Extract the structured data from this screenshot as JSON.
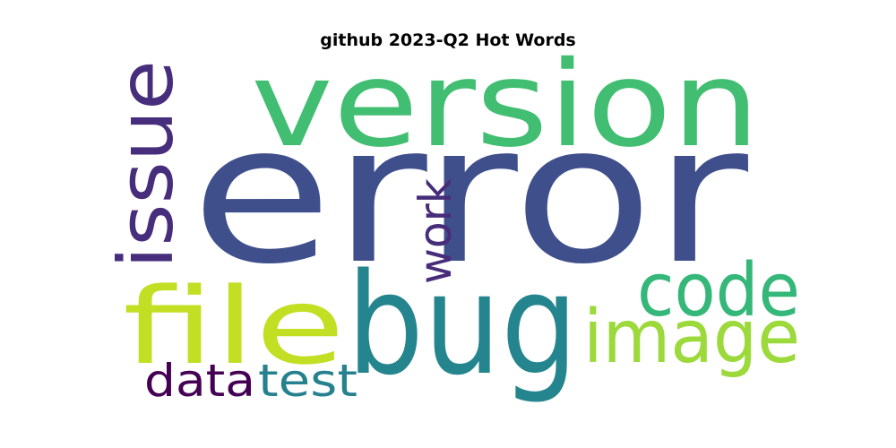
{
  "title": "github 2023-Q2 Hot Words",
  "words": [
    {
      "text": "error",
      "color": "#3f4f8c",
      "orientation": "horizontal"
    },
    {
      "text": "version",
      "color": "#41be71",
      "orientation": "horizontal"
    },
    {
      "text": "bug",
      "color": "#25858e",
      "orientation": "horizontal"
    },
    {
      "text": "issue",
      "color": "#472e7c",
      "orientation": "vertical"
    },
    {
      "text": "file",
      "color": "#c2df23",
      "orientation": "horizontal"
    },
    {
      "text": "code",
      "color": "#35b779",
      "orientation": "horizontal"
    },
    {
      "text": "image",
      "color": "#9cd93b",
      "orientation": "horizontal"
    },
    {
      "text": "work",
      "color": "#472c7a",
      "orientation": "vertical"
    },
    {
      "text": "data",
      "color": "#440154",
      "orientation": "horizontal"
    },
    {
      "text": "test",
      "color": "#26818e",
      "orientation": "horizontal"
    }
  ]
}
